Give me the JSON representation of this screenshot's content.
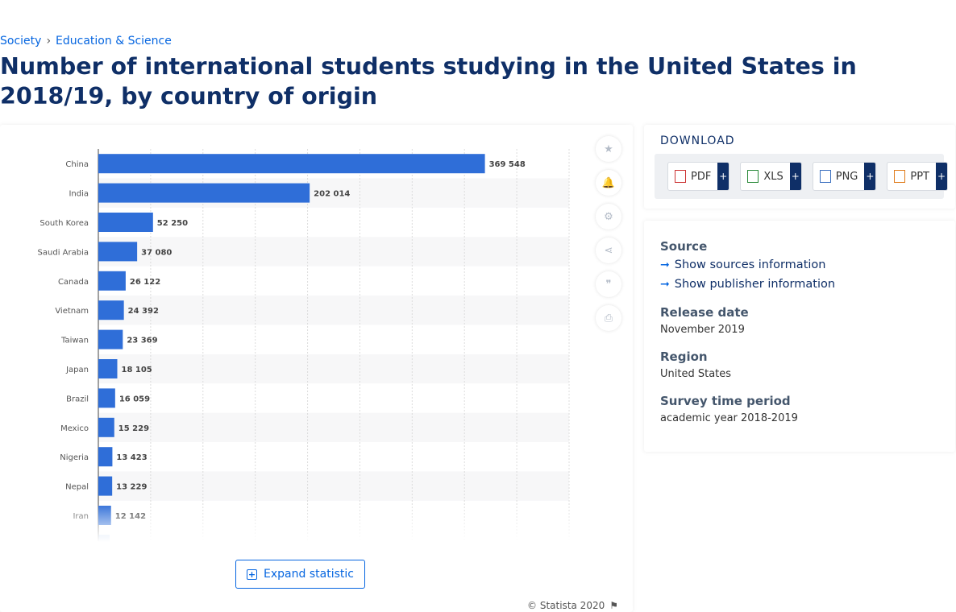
{
  "breadcrumb": {
    "items": [
      "Society",
      "Education & Science"
    ],
    "separator": "›"
  },
  "page_title": "Number of international students studying in the United States in 2018/19, by country of origin",
  "chart_data": {
    "type": "bar",
    "orientation": "horizontal",
    "categories": [
      "China",
      "India",
      "South Korea",
      "Saudi Arabia",
      "Canada",
      "Vietnam",
      "Taiwan",
      "Japan",
      "Brazil",
      "Mexico",
      "Nigeria",
      "Nepal",
      "Iran"
    ],
    "values": [
      369548,
      202014,
      52250,
      37080,
      26122,
      24392,
      23369,
      18105,
      16059,
      15229,
      13423,
      13229,
      12142
    ],
    "value_labels": [
      "369 548",
      "202 014",
      "52 250",
      "37 080",
      "26 122",
      "24 392",
      "23 369",
      "18 105",
      "16 059",
      "15 229",
      "13 423",
      "13 229",
      "12 142"
    ],
    "xlim": [
      0,
      450000
    ],
    "grid": true,
    "bar_color": "#2f6ed8"
  },
  "expand_button": "Expand statistic",
  "copyright": "© Statista 2020",
  "tools": [
    "star-icon",
    "bell-icon",
    "gear-icon",
    "share-icon",
    "quote-icon",
    "print-icon"
  ],
  "download": {
    "title": "DOWNLOAD",
    "buttons": [
      {
        "label": "PDF",
        "icon": "pdf-file-icon"
      },
      {
        "label": "XLS",
        "icon": "xls-file-icon"
      },
      {
        "label": "PNG",
        "icon": "png-file-icon"
      },
      {
        "label": "PPT",
        "icon": "ppt-file-icon"
      }
    ],
    "plus": "+"
  },
  "info": {
    "source_heading": "Source",
    "show_sources": "Show sources information",
    "show_publisher": "Show publisher information",
    "release_heading": "Release date",
    "release_value": "November 2019",
    "region_heading": "Region",
    "region_value": "United States",
    "survey_heading": "Survey time period",
    "survey_value": "academic year 2018-2019"
  }
}
